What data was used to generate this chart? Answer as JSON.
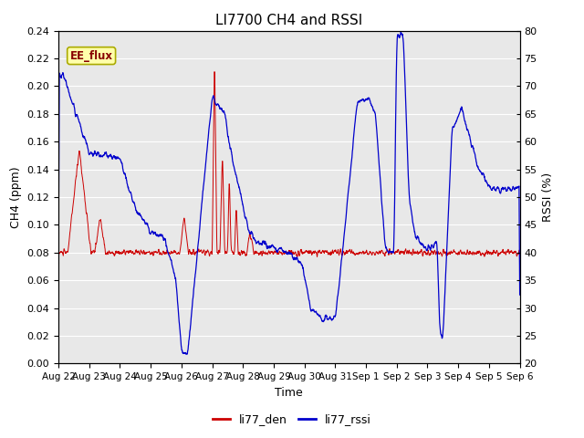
{
  "title": "LI7700 CH4 and RSSI",
  "xlabel": "Time",
  "ylabel_left": "CH4 (ppm)",
  "ylabel_right": "RSSI (%)",
  "ylim_left": [
    0.0,
    0.24
  ],
  "ylim_right": [
    20,
    80
  ],
  "yticks_left": [
    0.0,
    0.02,
    0.04,
    0.06,
    0.08,
    0.1,
    0.12,
    0.14,
    0.16,
    0.18,
    0.2,
    0.22,
    0.24
  ],
  "yticks_right": [
    20,
    25,
    30,
    35,
    40,
    45,
    50,
    55,
    60,
    65,
    70,
    75,
    80
  ],
  "color_ch4": "#cc0000",
  "color_rssi": "#0000cc",
  "legend_labels": [
    "li77_den",
    "li77_rssi"
  ],
  "bg_color": "#e8e8e8",
  "annotation_text": "EE_flux",
  "annotation_bg": "#ffffaa",
  "annotation_border": "#aaaa00",
  "n_points": 2000,
  "total_days": 15,
  "tick_labels": [
    "Aug 22",
    "Aug 23",
    "Aug 24",
    "Aug 25",
    "Aug 26",
    "Aug 27",
    "Aug 28",
    "Aug 29",
    "Aug 30",
    "Aug 31",
    "Sep 1",
    "Sep 2",
    "Sep 3",
    "Sep 4",
    "Sep 5",
    "Sep 6"
  ],
  "title_fontsize": 11,
  "label_fontsize": 9,
  "tick_fontsize": 8,
  "legend_fontsize": 9,
  "linewidth_ch4": 0.7,
  "linewidth_rssi": 0.9
}
